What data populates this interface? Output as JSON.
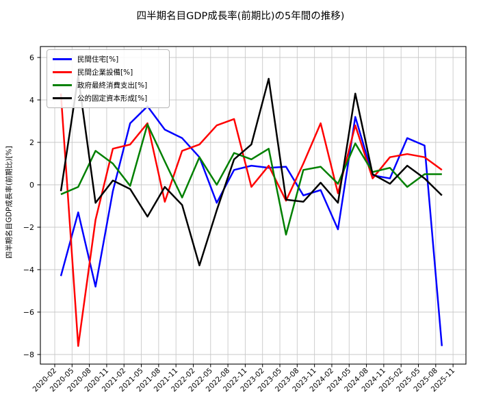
{
  "window": {
    "title": "四半期名目GDP成長率(前期比)の5年間の推移)"
  },
  "chart_data": {
    "type": "line",
    "title": "四半期名目GDP成長率(前期比)の5年間の推移)",
    "xlabel": "",
    "ylabel": "四半期名目GDP成長率(前期比)[%]",
    "grid": true,
    "legend_position": "upper left",
    "ylim": [
      -8.45,
      6.5
    ],
    "y_ticks": [
      6,
      4,
      2,
      0,
      -2,
      -4,
      -6,
      -8
    ],
    "y_tick_labels": [
      "6",
      "4",
      "2",
      "0",
      "−2",
      "−4",
      "−6",
      "−8"
    ],
    "x_tick_labels": [
      "2020-02",
      "2020-05",
      "2020-08",
      "2020-11",
      "2021-02",
      "2021-05",
      "2021-08",
      "2021-11",
      "2022-02",
      "2022-05",
      "2022-08",
      "2022-11",
      "2023-02",
      "2023-05",
      "2023-08",
      "2023-11",
      "2024-02",
      "2024-05",
      "2024-08",
      "2024-11",
      "2025-02",
      "2025-05",
      "2025-08",
      "2025-11"
    ],
    "x_tick_rotation_deg": 45,
    "categories": [
      "2020-02",
      "2020-05",
      "2020-08",
      "2020-11",
      "2021-02",
      "2021-05",
      "2021-08",
      "2021-11",
      "2022-02",
      "2022-05",
      "2022-08",
      "2022-11",
      "2023-02",
      "2023-05",
      "2023-08",
      "2023-11",
      "2024-02",
      "2024-05",
      "2024-08",
      "2024-11",
      "2025-02",
      "2025-05",
      "2025-08"
    ],
    "series": [
      {
        "name": "民間住宅[%]",
        "color": "#0000ff",
        "values": [
          -4.3,
          -1.3,
          -4.8,
          -0.3,
          2.9,
          3.7,
          2.6,
          2.2,
          1.3,
          -0.85,
          0.7,
          0.9,
          0.8,
          0.85,
          -0.5,
          -0.25,
          -2.1,
          3.2,
          0.45,
          0.3,
          2.2,
          1.85,
          -7.6
        ]
      },
      {
        "name": "民間企業設備[%]",
        "color": "#ff0000",
        "values": [
          4.3,
          -7.6,
          -1.65,
          1.7,
          1.9,
          2.9,
          -0.8,
          1.6,
          1.9,
          2.8,
          3.1,
          -0.1,
          0.9,
          -0.75,
          1.0,
          2.9,
          -0.4,
          2.8,
          0.3,
          1.3,
          1.45,
          1.3,
          0.7
        ]
      },
      {
        "name": "政府最終消費支出[%]",
        "color": "#008000",
        "values": [
          -0.45,
          -0.1,
          1.6,
          1.0,
          -0.05,
          2.85,
          1.1,
          -0.6,
          1.3,
          0.0,
          1.5,
          1.2,
          1.7,
          -2.35,
          0.7,
          0.85,
          0.05,
          1.95,
          0.6,
          0.8,
          -0.1,
          0.5,
          0.5
        ]
      },
      {
        "name": "公的固定資本形成[%]",
        "color": "#000000",
        "values": [
          -0.3,
          5.1,
          -0.85,
          0.2,
          -0.2,
          -1.5,
          -0.1,
          -0.95,
          -3.8,
          -1.2,
          1.2,
          1.9,
          5.0,
          -0.7,
          -0.8,
          0.1,
          -0.85,
          4.3,
          0.5,
          0.05,
          0.9,
          0.3,
          -0.5
        ]
      }
    ],
    "style": {
      "grid_color": "#c8c8c8",
      "spine_color": "#000000",
      "background": "#ffffff",
      "line_width": 2.5
    }
  }
}
